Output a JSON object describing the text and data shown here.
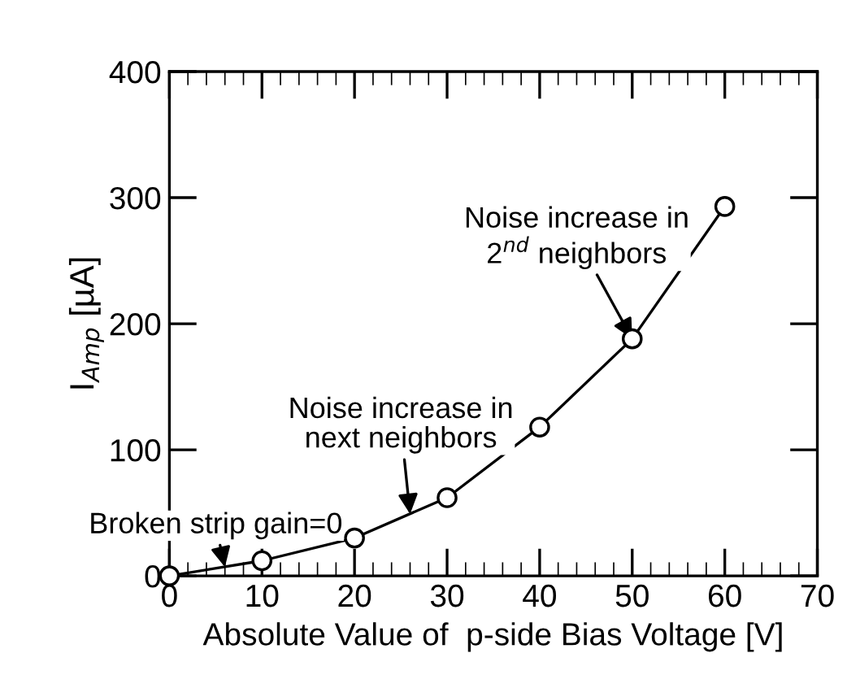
{
  "chart_data": {
    "type": "line",
    "xlabel": "Absolute Value of  p-side Bias Voltage [V]",
    "ylabel": "I$_{Amp}$ [µA]",
    "x": [
      0,
      10,
      20,
      30,
      40,
      50,
      60
    ],
    "series": [
      {
        "color": "#000000",
        "values": [
          0,
          12,
          30,
          62,
          118,
          188,
          293
        ]
      }
    ],
    "marker": "circle",
    "xlim": [
      0,
      70
    ],
    "xticks": [
      0,
      10,
      20,
      30,
      40,
      50,
      60,
      70
    ],
    "ylim": [
      0,
      400
    ],
    "yticks": [
      0,
      100,
      200,
      300,
      400
    ],
    "annotations": [
      {
        "text": "Broken strip gain=0",
        "x": 6,
        "y": 7
      },
      {
        "text": "Noise increase in\nnext neighbors",
        "x": 26,
        "y": 49
      },
      {
        "text": "Noise increase in\n2$^{nd}$ neighbors",
        "x": 50,
        "y": 188
      }
    ]
  }
}
